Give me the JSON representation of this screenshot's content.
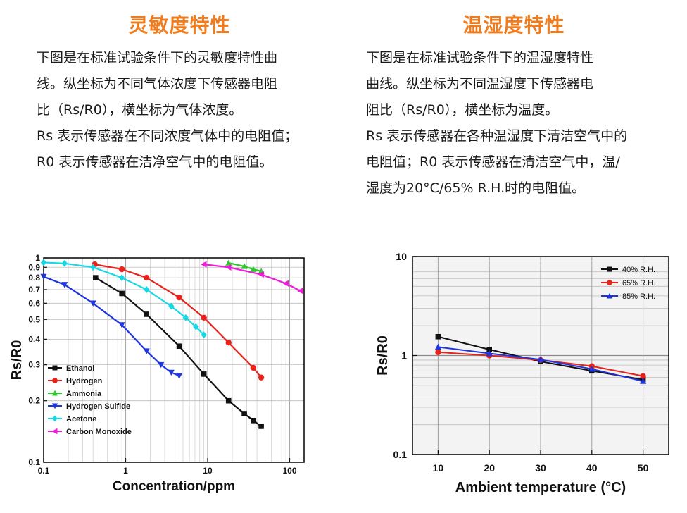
{
  "left": {
    "title": "灵敏度特性",
    "lines": [
      "下图是在标准试验条件下的灵敏度特性曲",
      "线。纵坐标为不同气体浓度下传感器电阻",
      "比（Rs/R0），横坐标为气体浓度。",
      "Rs 表示传感器在不同浓度气体中的电阻值；",
      "R0 表示传感器在洁净空气中的电阻值。"
    ]
  },
  "right": {
    "title": "温湿度特性",
    "lines": [
      "下图是在标准试验条件下的温湿度特性",
      "曲线。纵坐标为不同温湿度下传感器电",
      "阻比（Rs/R0），横坐标为温度。",
      "Rs 表示传感器在各种温湿度下清洁空气中的",
      "电阻值；R0 表示传感器在清洁空气中，温/",
      "湿度为20°C/65% R.H.时的电阻值。"
    ]
  },
  "chart_data": [
    {
      "type": "line",
      "xscale": "log",
      "yscale": "log",
      "xlabel": "Concentration/ppm",
      "ylabel": "Rs/R0",
      "xlim": [
        0.1,
        150
      ],
      "ylim": [
        0.1,
        1
      ],
      "xticks": [
        0.1,
        1,
        10,
        100
      ],
      "xtick_labels": [
        "0.1",
        "1",
        "10",
        "100"
      ],
      "yticks": [
        0.1,
        0.2,
        0.3,
        0.4,
        0.5,
        0.6,
        0.7,
        0.8,
        0.9,
        1
      ],
      "ytick_labels": [
        "0.1",
        "0.2",
        "0.3",
        "0.4",
        "0.5",
        "0.6",
        "0.7",
        "0.8",
        "0.9",
        "1"
      ],
      "grid": true,
      "legend": "bottom-left",
      "series": [
        {
          "name": "Ethanol",
          "marker": "square",
          "color": "#111111",
          "x": [
            0.43,
            0.9,
            1.8,
            4.5,
            9,
            18,
            28,
            36,
            45
          ],
          "y": [
            0.8,
            0.67,
            0.53,
            0.37,
            0.27,
            0.2,
            0.173,
            0.16,
            0.15
          ]
        },
        {
          "name": "Hydrogen",
          "marker": "circle",
          "color": "#e8231c",
          "x": [
            0.42,
            0.9,
            1.8,
            4.5,
            9,
            18,
            36,
            45
          ],
          "y": [
            0.93,
            0.88,
            0.8,
            0.64,
            0.51,
            0.385,
            0.29,
            0.26
          ]
        },
        {
          "name": "Ammonia",
          "marker": "triangle-up",
          "color": "#2ec82e",
          "x": [
            18,
            28,
            36,
            45
          ],
          "y": [
            0.945,
            0.91,
            0.88,
            0.86
          ]
        },
        {
          "name": "Hydrogen Sulfide",
          "marker": "triangle-down",
          "color": "#1f35e0",
          "x": [
            0.1,
            0.18,
            0.4,
            0.9,
            1.8,
            2.7,
            3.6,
            4.5
          ],
          "y": [
            0.81,
            0.74,
            0.6,
            0.47,
            0.35,
            0.3,
            0.275,
            0.265
          ]
        },
        {
          "name": "Acetone",
          "marker": "diamond",
          "color": "#17d9e6",
          "x": [
            0.1,
            0.18,
            0.4,
            0.9,
            1.8,
            3.6,
            5.4,
            7.2,
            9
          ],
          "y": [
            0.95,
            0.94,
            0.9,
            0.8,
            0.7,
            0.58,
            0.51,
            0.46,
            0.42
          ]
        },
        {
          "name": "Carbon Monoxide",
          "marker": "triangle-left",
          "color": "#ee1cd8",
          "x": [
            9,
            18,
            45,
            90,
            135
          ],
          "y": [
            0.93,
            0.9,
            0.83,
            0.75,
            0.69
          ]
        }
      ]
    },
    {
      "type": "line",
      "xscale": "linear",
      "yscale": "log",
      "xlabel": "Ambient temperature (°C)",
      "ylabel": "Rs/R0",
      "xlim": [
        5,
        55
      ],
      "ylim": [
        0.1,
        10
      ],
      "xticks": [
        10,
        20,
        30,
        40,
        50
      ],
      "xtick_labels": [
        "10",
        "20",
        "30",
        "40",
        "50"
      ],
      "yticks": [
        0.1,
        1,
        10
      ],
      "ytick_labels": [
        "0.1",
        "1",
        "10"
      ],
      "grid": true,
      "legend": "top-right",
      "series": [
        {
          "name": "40% R.H.",
          "marker": "square",
          "color": "#111111",
          "x": [
            10,
            20,
            30,
            40,
            50
          ],
          "y": [
            1.55,
            1.15,
            0.87,
            0.7,
            0.57
          ]
        },
        {
          "name": "65% R.H.",
          "marker": "circle",
          "color": "#e8231c",
          "x": [
            10,
            20,
            30,
            40,
            50
          ],
          "y": [
            1.08,
            1.0,
            0.9,
            0.78,
            0.62
          ]
        },
        {
          "name": "85% R.H.",
          "marker": "triangle-up",
          "color": "#1f35e0",
          "x": [
            10,
            20,
            30,
            40,
            50
          ],
          "y": [
            1.22,
            1.05,
            0.91,
            0.73,
            0.55
          ]
        }
      ]
    }
  ]
}
